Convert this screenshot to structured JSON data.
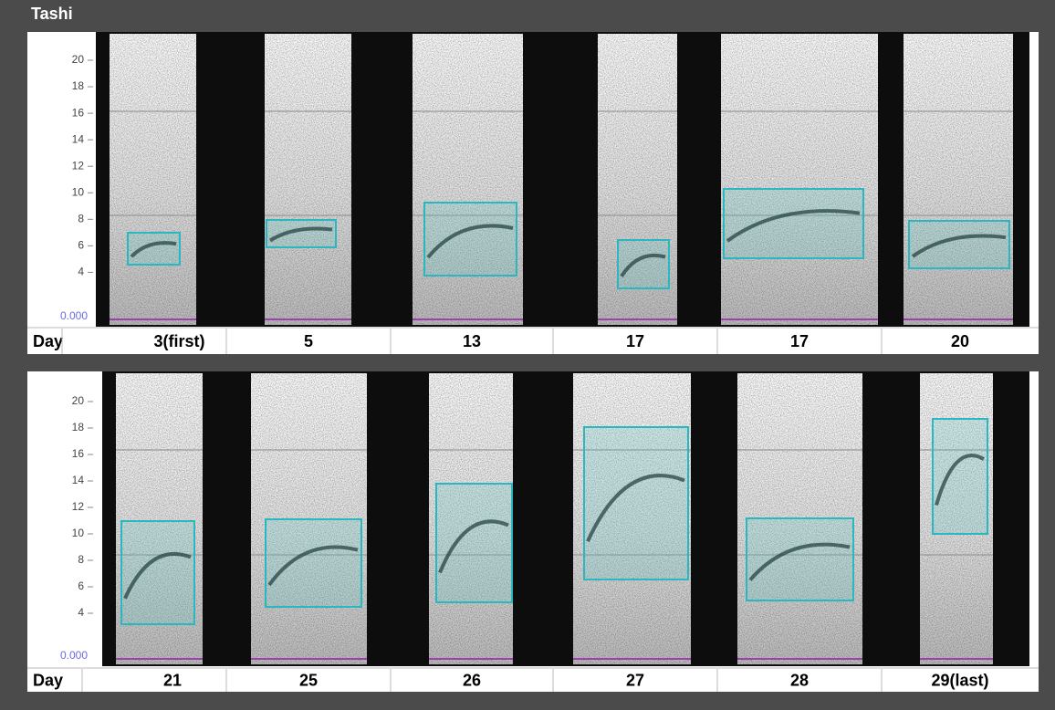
{
  "title": "Tashi",
  "panels": [
    {
      "y_axis": {
        "ticks": [
          "20",
          "18",
          "16",
          "14",
          "12",
          "10",
          "8",
          "6",
          "4"
        ],
        "origin": "0.000"
      },
      "day_header": "Day",
      "days": [
        "3(first)",
        "5",
        "13",
        "17",
        "17",
        "20"
      ]
    },
    {
      "y_axis": {
        "ticks": [
          "20",
          "18",
          "16",
          "14",
          "12",
          "10",
          "8",
          "6",
          "4"
        ],
        "origin": "0.000"
      },
      "day_header": "Day",
      "days": [
        "21",
        "25",
        "26",
        "27",
        "28",
        "29(last)"
      ]
    }
  ]
}
